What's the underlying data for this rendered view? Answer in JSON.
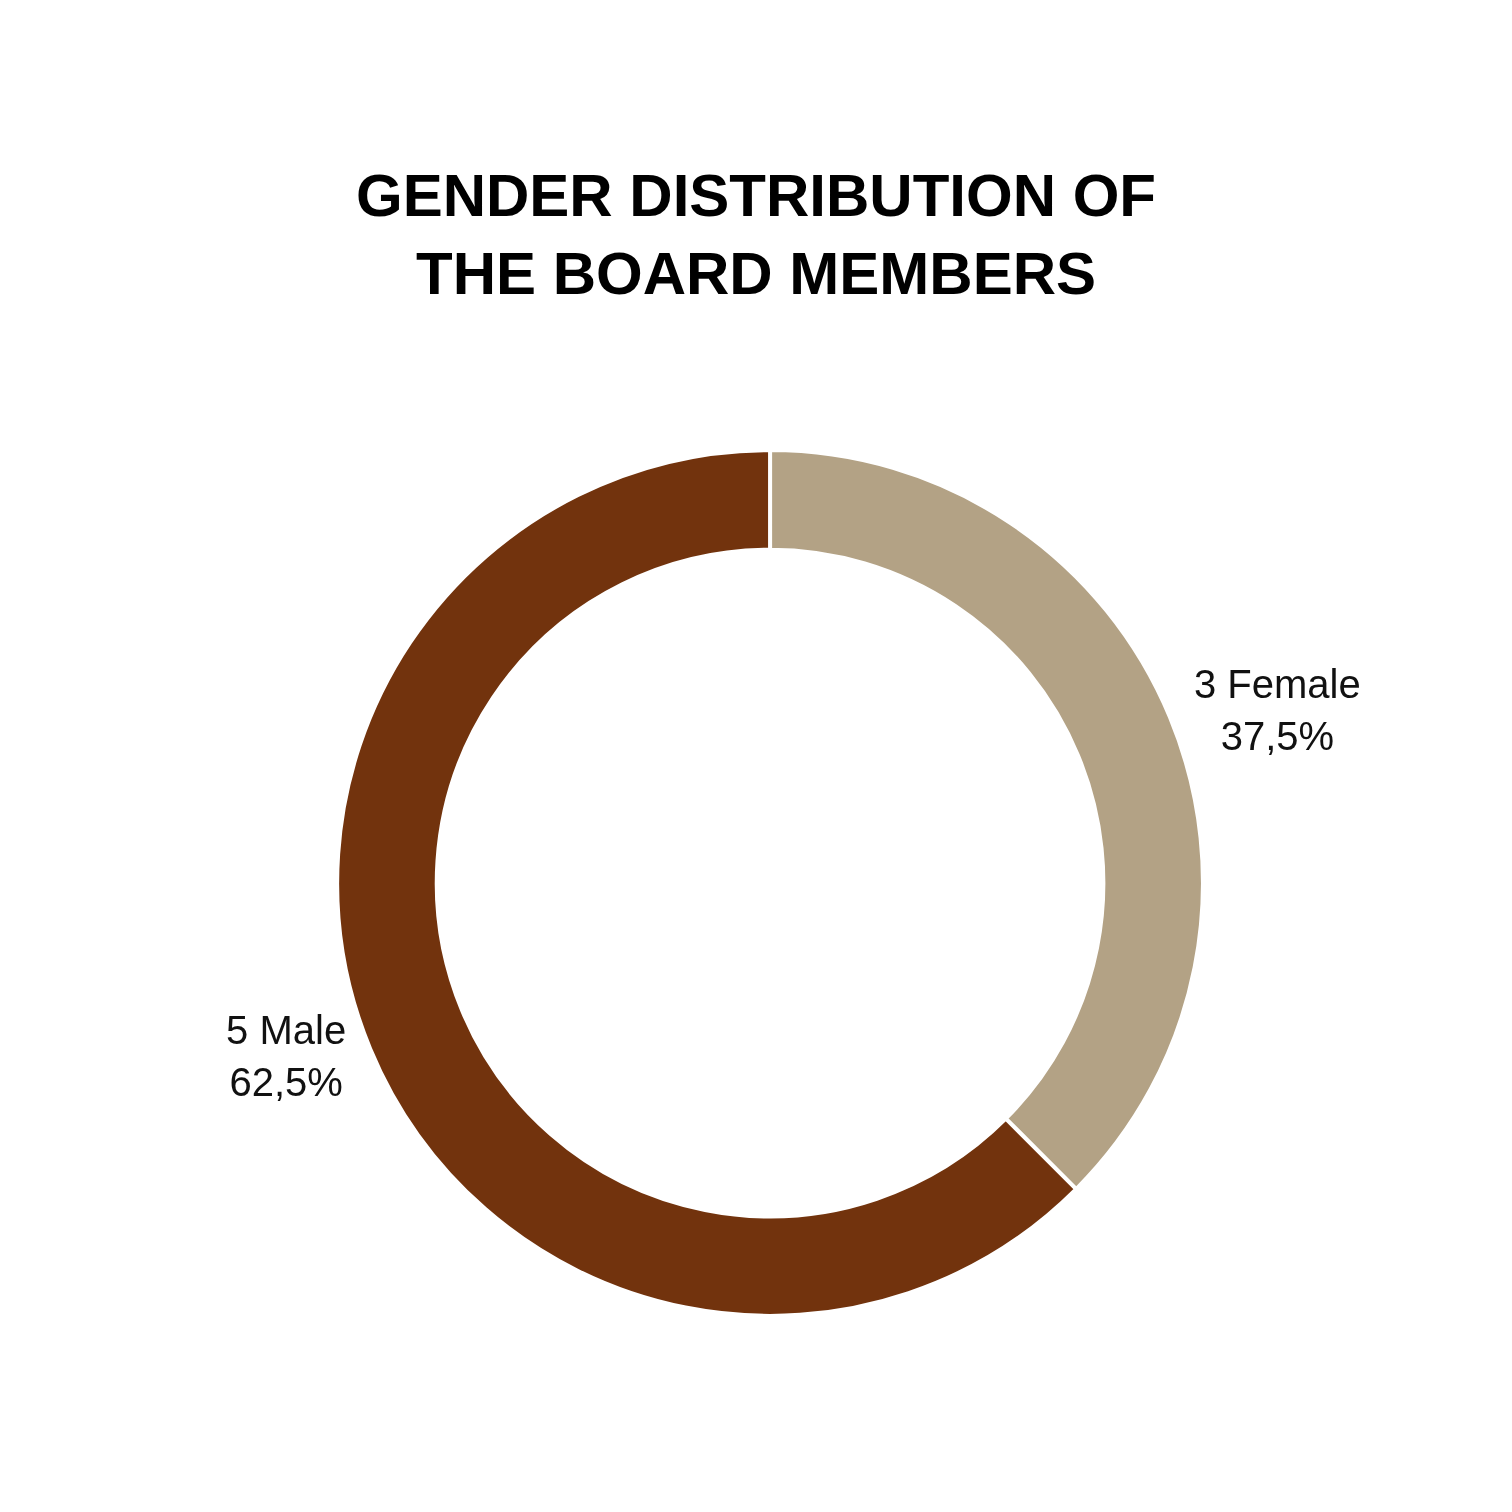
{
  "chart_data": {
    "type": "donut",
    "title": "GENDER DISTRIBUTION OF\nTHE BOARD MEMBERS",
    "categories": [
      "3 Female",
      "5 Male"
    ],
    "values": [
      37.5,
      62.5
    ],
    "value_labels": [
      "37,5%",
      "62,5%"
    ],
    "colors": [
      "#b3a285",
      "#72330d"
    ],
    "legend": false
  }
}
